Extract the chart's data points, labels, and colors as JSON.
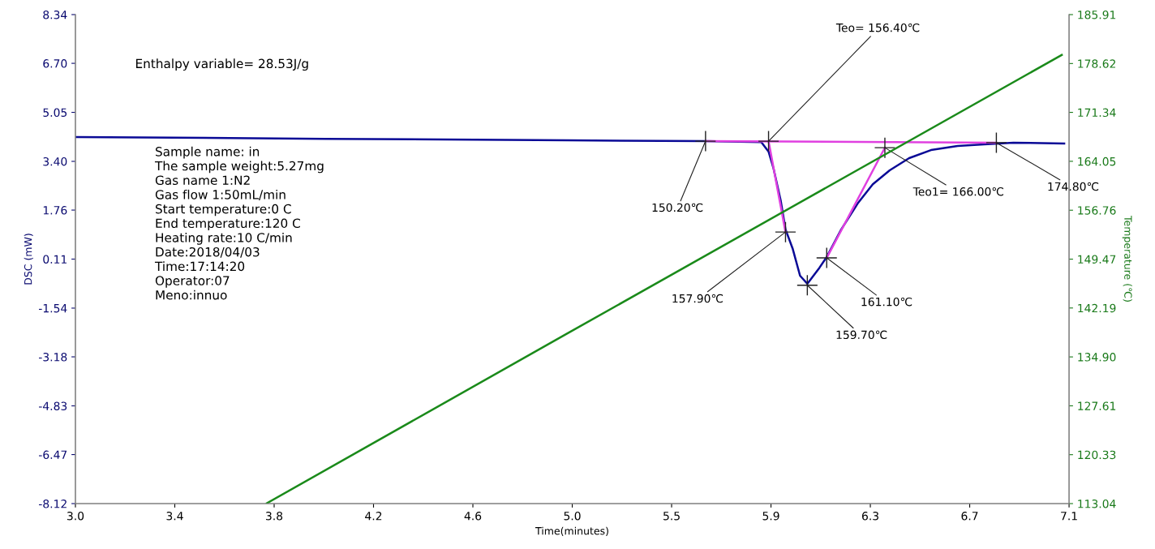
{
  "chart_data": {
    "type": "line",
    "xlabel": "Time(minutes)",
    "ylabel": "DSC (mW)",
    "y2label": "Temperature (℃)",
    "xlim": [
      3.0,
      7.1
    ],
    "xticks": [
      {
        "value": 3.0,
        "label": "3.0"
      },
      {
        "value": 3.41,
        "label": "3.4"
      },
      {
        "value": 3.82,
        "label": "3.8"
      },
      {
        "value": 4.23,
        "label": "4.2"
      },
      {
        "value": 4.64,
        "label": "4.6"
      },
      {
        "value": 5.05,
        "label": "5.0"
      },
      {
        "value": 5.46,
        "label": "5.5"
      },
      {
        "value": 5.87,
        "label": "5.9"
      },
      {
        "value": 6.28,
        "label": "6.3"
      },
      {
        "value": 6.69,
        "label": "6.7"
      },
      7.1
    ],
    "ylim": [
      -8.12,
      8.34
    ],
    "yticks": [
      -8.12,
      -6.47,
      -4.83,
      -3.18,
      -1.54,
      0.11,
      1.76,
      {
        "value": 3.4,
        "label": "3.40"
      },
      5.05,
      {
        "value": 6.7,
        "label": "6.70"
      },
      8.34
    ],
    "y2lim": [
      113.04,
      185.91
    ],
    "y2ticks": [
      113.04,
      120.33,
      127.61,
      {
        "value": 134.9,
        "label": "134.90"
      },
      142.19,
      149.47,
      156.76,
      164.05,
      171.34,
      178.62,
      185.91
    ],
    "grid": false,
    "legend": false,
    "series": [
      {
        "color": "#0a0a96",
        "x": [
          3.0,
          4.03,
          5.03,
          5.6,
          5.83,
          5.86,
          5.88,
          5.91,
          5.93,
          5.96,
          5.99,
          6.02,
          6.07,
          6.1,
          6.16,
          6.23,
          6.29,
          6.36,
          6.44,
          6.53,
          6.64,
          6.75,
          6.87,
          7.08
        ],
        "values": [
          4.22,
          4.16,
          4.11,
          4.08,
          4.05,
          3.73,
          3.18,
          2.09,
          1.11,
          0.45,
          -0.45,
          -0.72,
          -0.18,
          0.18,
          1.11,
          2.01,
          2.63,
          3.1,
          3.51,
          3.78,
          3.92,
          3.97,
          4.03,
          4.0
        ]
      },
      {
        "color": "#1a8a1a",
        "axis": "y2",
        "x": [
          3.79,
          5.03,
          7.07
        ],
        "values": [
          113.1,
          138.4,
          179.9
        ]
      },
      {
        "color": "#e040e0",
        "x": [
          5.6,
          6.8
        ],
        "values": [
          4.08,
          4.03
        ]
      },
      {
        "color": "#e040e0",
        "x": [
          5.86,
          5.93
        ],
        "values": [
          4.08,
          1.02
        ]
      },
      {
        "color": "#e040e0",
        "x": [
          6.1,
          6.34
        ],
        "values": [
          0.15,
          3.86
        ]
      }
    ],
    "annotations": [
      {
        "text": "150.20℃",
        "x": 5.6,
        "y": 4.08
      },
      {
        "text": "Teo= 156.40℃",
        "x": 5.86,
        "y": 4.08
      },
      {
        "text": "157.90℃",
        "x": 5.93,
        "y": 1.02
      },
      {
        "text": "159.70℃",
        "x": 6.02,
        "y": -0.77
      },
      {
        "text": "161.10℃",
        "x": 6.1,
        "y": 0.15
      },
      {
        "text": "Teo1= 166.00℃",
        "x": 6.34,
        "y": 3.86
      },
      {
        "text": "174.80℃",
        "x": 6.8,
        "y": 4.03
      },
      "Enthalpy variable= 28.53J/g",
      "Sample name: in\nThe sample weight:5.27mg\nGas name 1:N2\nGas flow 1:50mL/min\nStart temperature:0 C\nEnd temperature:120 C\nHeating rate:10 C/min\nDate:2018/04/03\nTime:17:14:20\nOperator:07\nMeno:innuo"
    ]
  }
}
